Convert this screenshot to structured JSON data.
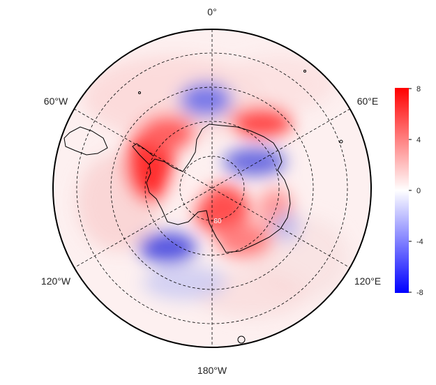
{
  "map": {
    "projection": "south-polar-stereographic",
    "longitude_labels": {
      "top": "0°",
      "upper_left": "60°W",
      "upper_right": "60°E",
      "lower_left": "120°W",
      "lower_right": "120°E",
      "bottom": "180°W"
    },
    "latitude_label": "80",
    "gridlines": "dashed",
    "features": [
      "antarctica-coastline",
      "south-america-tip",
      "scattered-islands"
    ]
  },
  "colorbar": {
    "ticks": [
      "8",
      "4",
      "0",
      "-4",
      "-8"
    ],
    "vmin": -8,
    "vmax": 8,
    "colors": {
      "high": "#ff0000",
      "mid": "#ffffff",
      "low": "#0000ff"
    }
  },
  "anomaly_field": {
    "colormap": "blue-white-red",
    "positive_regions": [
      "Antarctic Peninsula / Bellingshausen Sea",
      "East Antarctica near 30°E",
      "Ross Ice Shelf / pole",
      "Wilkes Land"
    ],
    "negative_regions": [
      "Weddell Sea north",
      "Amundsen Sea",
      "East Antarctic coast 60–90°E"
    ]
  }
}
